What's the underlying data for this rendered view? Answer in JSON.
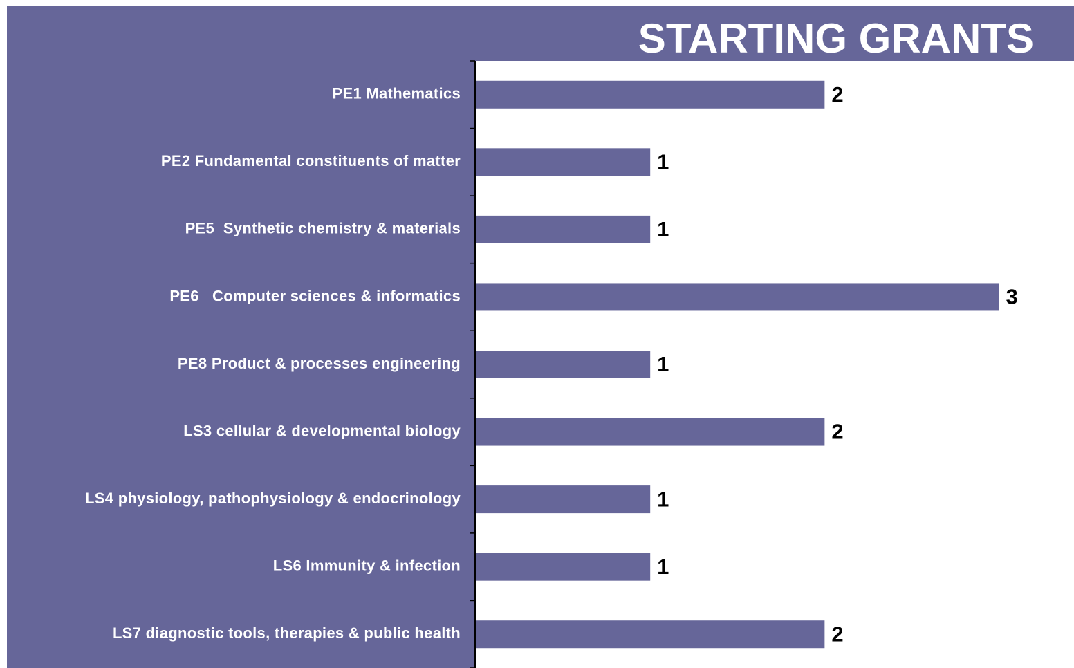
{
  "chart_data": {
    "type": "hbar",
    "title": "STARTING GRANTS",
    "categories": [
      "PE1 Mathematics",
      "PE2 Fundamental constituents of matter",
      "PE5  Synthetic chemistry & materials",
      "PE6   Computer sciences & informatics",
      "PE8 Product & processes engineering",
      "LS3 cellular & developmental biology",
      "LS4 physiology, pathophysiology & endocrinology",
      "LS6 Immunity & infection",
      "LS7 diagnostic tools, therapies & public health"
    ],
    "values": [
      2,
      1,
      1,
      3,
      1,
      2,
      1,
      1,
      2
    ],
    "color": "#666699",
    "xlim": [
      0,
      3.43
    ]
  }
}
